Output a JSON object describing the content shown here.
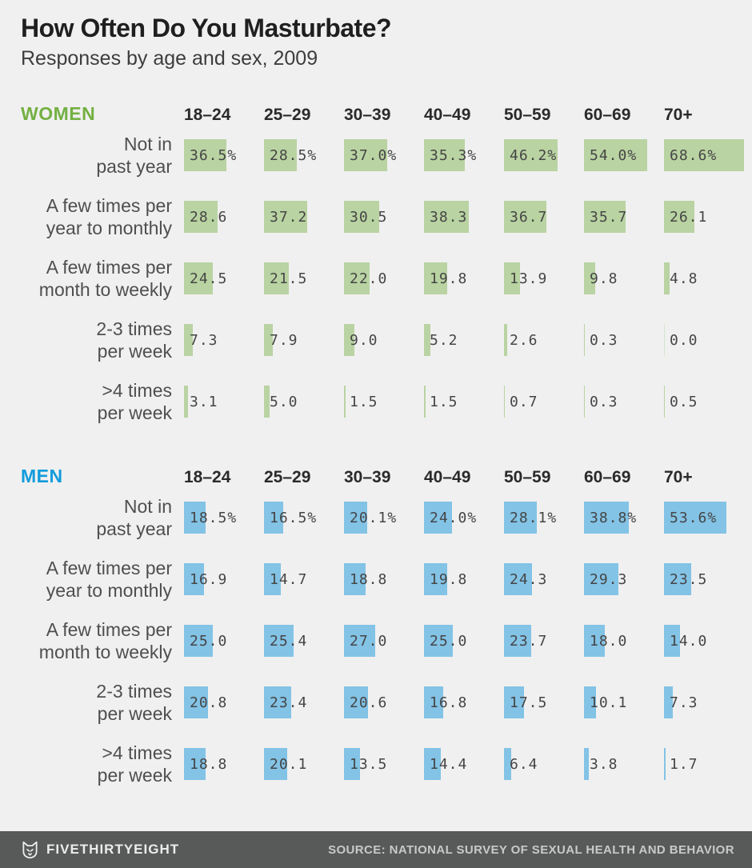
{
  "colors": {
    "background": "#f0f0f0",
    "title_text": "#1f1f1f",
    "label_text": "#4f4f4f",
    "value_text": "#454545",
    "women_accent": "#74b042",
    "women_bar": "#b9d3a2",
    "men_accent": "#119bdb",
    "men_bar": "#83c3e6",
    "footer_background": "#575a59",
    "footer_text": "#ececec"
  },
  "chart_data": {
    "type": "bar",
    "title": "How Often Do You Masturbate?",
    "subtitle": "Responses by age and sex, 2009",
    "unit": "%",
    "orientation": "horizontal",
    "xlim": [
      0,
      69
    ],
    "grid": false,
    "age_groups": [
      "18–24",
      "25–29",
      "30–39",
      "40–49",
      "50–59",
      "60–69",
      "70+"
    ],
    "frequency_labels": [
      "Not in past year",
      "A few times per year to monthly",
      "A few times per month to weekly",
      "2-3 times per week",
      ">4 times per week"
    ],
    "frequency_labels_two_line": [
      [
        "Not in",
        "past year"
      ],
      [
        "A few times per",
        "year to monthly"
      ],
      [
        "A few times per",
        "month to weekly"
      ],
      [
        "2-3 times",
        "per week"
      ],
      [
        ">4 times",
        "per week"
      ]
    ],
    "percent_suffix_on_first_row_only": true,
    "sections": [
      {
        "name": "WOMEN",
        "accent": "#74b042",
        "bar_color": "#b9d3a2",
        "rows": [
          [
            36.5,
            28.5,
            37.0,
            35.3,
            46.2,
            54.0,
            68.6
          ],
          [
            28.6,
            37.2,
            30.5,
            38.3,
            36.7,
            35.7,
            26.1
          ],
          [
            24.5,
            21.5,
            22.0,
            19.8,
            13.9,
            9.8,
            4.8
          ],
          [
            7.3,
            7.9,
            9.0,
            5.2,
            2.6,
            0.3,
            0.0
          ],
          [
            3.1,
            5.0,
            1.5,
            1.5,
            0.7,
            0.3,
            0.5
          ]
        ]
      },
      {
        "name": "MEN",
        "accent": "#119bdb",
        "bar_color": "#83c3e6",
        "rows": [
          [
            18.5,
            16.5,
            20.1,
            24.0,
            28.1,
            38.8,
            53.6
          ],
          [
            16.9,
            14.7,
            18.8,
            19.8,
            24.3,
            29.3,
            23.5
          ],
          [
            25.0,
            25.4,
            27.0,
            25.0,
            23.7,
            18.0,
            14.0
          ],
          [
            20.8,
            23.4,
            20.6,
            16.8,
            17.5,
            10.1,
            7.3
          ],
          [
            18.8,
            20.1,
            13.5,
            14.4,
            6.4,
            3.8,
            1.7
          ]
        ]
      }
    ]
  },
  "footer": {
    "brand": "FIVETHIRTYEIGHT",
    "source": "SOURCE: NATIONAL SURVEY OF SEXUAL HEALTH AND BEHAVIOR"
  }
}
